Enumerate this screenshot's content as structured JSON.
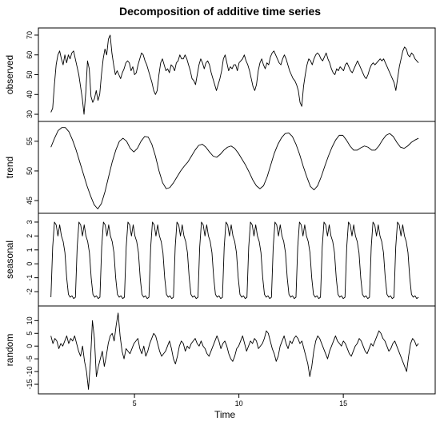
{
  "chart_data": {
    "type": "line",
    "title": "Decomposition of additive time series",
    "xlabel": "Time",
    "xlim": [
      0.4,
      19.4
    ],
    "x_ticks": [
      5,
      10,
      15
    ],
    "x_start": 1,
    "x_end": 18.6,
    "panels": [
      {
        "name": "observed",
        "ylabel": "observed",
        "ylim": [
          28,
          72
        ],
        "y_ticks": [
          30,
          40,
          50,
          60,
          70
        ],
        "values": [
          31,
          33,
          45,
          55,
          60,
          62,
          58,
          55,
          60,
          56,
          60,
          58,
          61,
          62,
          58,
          54,
          50,
          44,
          38,
          30,
          41,
          57,
          53,
          39,
          36,
          38,
          42,
          37,
          40,
          50,
          58,
          63,
          60,
          68,
          70,
          61,
          55,
          50,
          52,
          50,
          48,
          51,
          53,
          56,
          57,
          56,
          52,
          54,
          50,
          51,
          55,
          58,
          61,
          60,
          57,
          55,
          52,
          49,
          46,
          42,
          40,
          42,
          50,
          56,
          58,
          55,
          52,
          53,
          51,
          55,
          54,
          52,
          56,
          57,
          60,
          58,
          58,
          60,
          58,
          55,
          52,
          48,
          47,
          45,
          50,
          55,
          58,
          56,
          53,
          56,
          57,
          55,
          51,
          48,
          45,
          42,
          45,
          48,
          52,
          58,
          60,
          56,
          52,
          54,
          53,
          55,
          55,
          52,
          56,
          57,
          58,
          60,
          57,
          55,
          52,
          48,
          44,
          42,
          45,
          52,
          56,
          58,
          55,
          53,
          56,
          55,
          59,
          61,
          62,
          60,
          58,
          56,
          55,
          58,
          60,
          58,
          55,
          52,
          50,
          48,
          47,
          45,
          42,
          36,
          34,
          44,
          50,
          55,
          58,
          57,
          55,
          58,
          60,
          61,
          60,
          58,
          57,
          59,
          61,
          58,
          56,
          53,
          51,
          50,
          53,
          52,
          54,
          53,
          52,
          55,
          56,
          54,
          52,
          51,
          53,
          55,
          57,
          55,
          53,
          51,
          49,
          48,
          50,
          53,
          55,
          56,
          55,
          56,
          57,
          58,
          57,
          58,
          56,
          54,
          52,
          50,
          48,
          46,
          42,
          48,
          54,
          58,
          62,
          64,
          63,
          60,
          59,
          61,
          60,
          58,
          57,
          56
        ]
      },
      {
        "name": "trend",
        "ylabel": "trend",
        "ylim": [
          43.4,
          57.8
        ],
        "y_ticks": [
          45,
          50,
          55
        ],
        "values": [
          54.0,
          55.5,
          56.8,
          57.3,
          57.3,
          56.6,
          55.2,
          53.5,
          51.5,
          49.5,
          47.5,
          45.8,
          44.3,
          43.6,
          44.5,
          46.5,
          49.0,
          51.5,
          53.5,
          55.0,
          55.5,
          55.0,
          53.8,
          53.2,
          53.8,
          55.0,
          55.8,
          55.7,
          54.5,
          52.5,
          50.0,
          48.0,
          47.0,
          47.2,
          48.0,
          49.0,
          50.0,
          50.8,
          51.5,
          52.5,
          53.5,
          54.3,
          54.5,
          54.0,
          53.2,
          52.5,
          52.3,
          52.8,
          53.5,
          54.0,
          54.2,
          53.8,
          53.0,
          52.0,
          51.0,
          49.8,
          48.5,
          47.5,
          47.0,
          47.5,
          49.0,
          51.0,
          53.0,
          54.5,
          55.6,
          56.3,
          56.4,
          55.8,
          54.5,
          52.8,
          50.8,
          49.0,
          47.4,
          46.8,
          47.5,
          49.0,
          50.8,
          52.5,
          54.0,
          55.2,
          56.0,
          56.0,
          55.2,
          54.2,
          53.5,
          53.5,
          53.9,
          54.2,
          54.0,
          53.5,
          53.5,
          54.2,
          55.2,
          56.0,
          56.3,
          55.8,
          54.8,
          54.0,
          53.8,
          54.2,
          54.8,
          55.2,
          55.5
        ]
      },
      {
        "name": "seasonal",
        "ylabel": "seasonal",
        "ylim": [
          -2.8,
          3.4
        ],
        "y_ticks": [
          -2,
          -1,
          0,
          1,
          2,
          3
        ],
        "values": [
          -2.4,
          1.2,
          3.0,
          2.8,
          2.0,
          2.8,
          2.0,
          1.6,
          0.8,
          -1.0,
          -2.2,
          -2.4,
          -2.3,
          -2.5,
          -2.4,
          1.2,
          3.0,
          2.8,
          2.0,
          2.8,
          2.0,
          1.6,
          0.8,
          -1.0,
          -2.2,
          -2.4,
          -2.3,
          -2.5,
          -2.4,
          1.2,
          3.0,
          2.8,
          2.0,
          2.8,
          2.0,
          1.6,
          0.8,
          -1.0,
          -2.2,
          -2.4,
          -2.3,
          -2.5,
          -2.4,
          1.2,
          3.0,
          2.8,
          2.0,
          2.8,
          2.0,
          1.6,
          0.8,
          -1.0,
          -2.2,
          -2.4,
          -2.3,
          -2.5,
          -2.4,
          1.2,
          3.0,
          2.8,
          2.0,
          2.8,
          2.0,
          1.6,
          0.8,
          -1.0,
          -2.2,
          -2.4,
          -2.3,
          -2.5,
          -2.4,
          1.2,
          3.0,
          2.8,
          2.0,
          2.8,
          2.0,
          1.6,
          0.8,
          -1.0,
          -2.2,
          -2.4,
          -2.3,
          -2.5,
          -2.4,
          1.2,
          3.0,
          2.8,
          2.0,
          2.8,
          2.0,
          1.6,
          0.8,
          -1.0,
          -2.2,
          -2.4,
          -2.3,
          -2.5,
          -2.4,
          1.2,
          3.0,
          2.8,
          2.0,
          2.8,
          2.0,
          1.6,
          0.8,
          -1.0,
          -2.2,
          -2.4,
          -2.3,
          -2.5,
          -2.4,
          1.2,
          3.0,
          2.8,
          2.0,
          2.8,
          2.0,
          1.6,
          0.8,
          -1.0,
          -2.2,
          -2.4,
          -2.3,
          -2.5,
          -2.4,
          1.2,
          3.0,
          2.8,
          2.0,
          2.8,
          2.0,
          1.6,
          0.8,
          -1.0,
          -2.2,
          -2.4,
          -2.3,
          -2.5,
          -2.4,
          1.2,
          3.0,
          2.8,
          2.0,
          2.8,
          2.0,
          1.6,
          0.8,
          -1.0,
          -2.2,
          -2.4,
          -2.3,
          -2.5,
          -2.4,
          1.2,
          3.0,
          2.8,
          2.0,
          2.8,
          2.0,
          1.6,
          0.8,
          -1.0,
          -2.2,
          -2.4,
          -2.3,
          -2.5,
          -2.4,
          1.2,
          3.0,
          2.8,
          2.0,
          2.8,
          2.0,
          1.6,
          0.8,
          -1.0,
          -2.2,
          -2.4,
          -2.3,
          -2.5,
          -2.4,
          1.2,
          3.0,
          2.8,
          2.0,
          2.8,
          2.0,
          1.6,
          0.8,
          -1.0,
          -2.2,
          -2.4,
          -2.3,
          -2.5,
          -2.4,
          1.2,
          3.0,
          2.8,
          2.0,
          2.8,
          2.0,
          1.6,
          0.8,
          -1.0,
          -2.2,
          -2.4,
          -2.3,
          -2.5,
          -2.4
        ]
      },
      {
        "name": "random",
        "ylabel": "random",
        "ylim": [
          -17.5,
          14.5
        ],
        "y_ticks": [
          -15,
          -10,
          -5,
          0,
          5,
          10
        ],
        "values": [
          4,
          1,
          3,
          2,
          -1,
          1,
          0,
          2,
          4,
          1,
          3,
          2,
          4,
          1,
          -2,
          -4,
          0,
          -6,
          -10,
          -17,
          -6,
          10,
          3,
          -12,
          -8,
          -5,
          -2,
          -8,
          -4,
          1,
          4,
          5,
          2,
          8,
          13,
          4,
          -2,
          -5,
          -1,
          -2,
          -3,
          -1,
          1,
          2,
          3,
          -1,
          -3,
          0,
          -4,
          -2,
          1,
          3,
          5,
          4,
          1,
          -2,
          -4,
          -3,
          -2,
          0,
          2,
          -1,
          -5,
          -7,
          -4,
          0,
          2,
          1,
          -2,
          0,
          -1,
          1,
          2,
          3,
          1,
          0,
          2,
          0,
          -1,
          -3,
          -4,
          -2,
          0,
          2,
          4,
          2,
          -1,
          1,
          2,
          0,
          -3,
          -5,
          -6,
          -4,
          -1,
          0,
          2,
          4,
          1,
          -2,
          0,
          2,
          1,
          3,
          2,
          -1,
          0,
          1,
          3,
          6,
          5,
          2,
          -1,
          -3,
          -6,
          -4,
          0,
          2,
          4,
          1,
          -1,
          2,
          1,
          3,
          4,
          3,
          1,
          2,
          -1,
          -4,
          -7,
          -12,
          -8,
          -2,
          2,
          4,
          3,
          1,
          -1,
          -3,
          -5,
          -2,
          0,
          2,
          4,
          2,
          1,
          0,
          2,
          1,
          -1,
          -3,
          -4,
          -2,
          0,
          1,
          3,
          2,
          0,
          -2,
          -3,
          -1,
          1,
          0,
          2,
          4,
          6,
          5,
          3,
          2,
          0,
          -2,
          -1,
          1,
          2,
          0,
          -2,
          -4,
          -6,
          -8,
          -10,
          -4,
          1,
          3,
          2,
          0,
          1
        ]
      }
    ]
  }
}
